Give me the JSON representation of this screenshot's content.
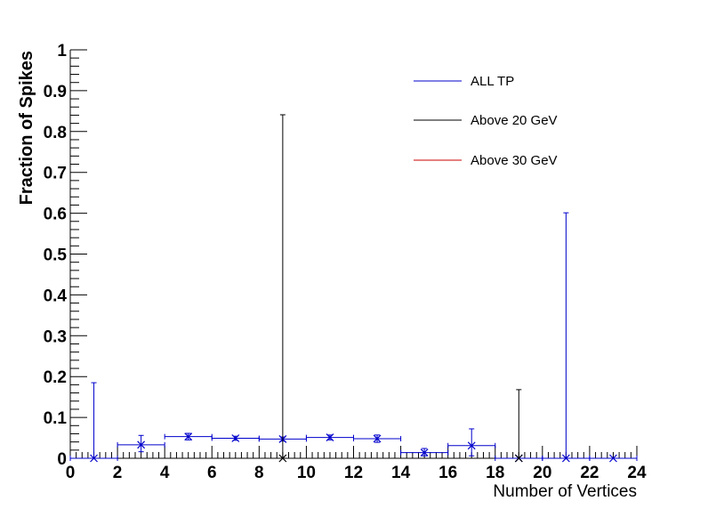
{
  "chart_data": {
    "type": "scatter",
    "xlabel": "Number of Vertices",
    "ylabel": "Fraction of Spikes",
    "xlim": [
      0,
      24
    ],
    "ylim": [
      0,
      1
    ],
    "x_ticks": [
      "0",
      "2",
      "4",
      "6",
      "8",
      "10",
      "12",
      "14",
      "16",
      "18",
      "20",
      "22",
      "24"
    ],
    "y_ticks": [
      "0",
      "0.1",
      "0.2",
      "0.3",
      "0.4",
      "0.5",
      "0.6",
      "0.7",
      "0.8",
      "0.9",
      "1"
    ],
    "grid": false,
    "legend_position": "top-right",
    "series": [
      {
        "name": "ALL TP",
        "color": "#0000cc",
        "points": [
          {
            "x": 1,
            "xerr": 1,
            "y": 0,
            "yerr_up": 0.185,
            "yerr_down": 0
          },
          {
            "x": 3,
            "xerr": 1,
            "y": 0.033,
            "yerr_up": 0.023,
            "yerr_down": 0.017
          },
          {
            "x": 5,
            "xerr": 1,
            "y": 0.053,
            "yerr_up": 0.008,
            "yerr_down": 0.008
          },
          {
            "x": 7,
            "xerr": 1,
            "y": 0.049,
            "yerr_up": 0.005,
            "yerr_down": 0.005
          },
          {
            "x": 9,
            "xerr": 1,
            "y": 0.047,
            "yerr_up": 0.005,
            "yerr_down": 0.005
          },
          {
            "x": 11,
            "xerr": 1,
            "y": 0.051,
            "yerr_up": 0.006,
            "yerr_down": 0.006
          },
          {
            "x": 13,
            "xerr": 1,
            "y": 0.048,
            "yerr_up": 0.009,
            "yerr_down": 0.009
          },
          {
            "x": 15,
            "xerr": 1,
            "y": 0.014,
            "yerr_up": 0.01,
            "yerr_down": 0.008
          },
          {
            "x": 17,
            "xerr": 1,
            "y": 0.031,
            "yerr_up": 0.041,
            "yerr_down": 0.025
          },
          {
            "x": 19,
            "xerr": 1,
            "y": 0,
            "yerr_up": 0,
            "yerr_down": 0
          },
          {
            "x": 21,
            "xerr": 1,
            "y": 0,
            "yerr_up": 0.601,
            "yerr_down": 0
          },
          {
            "x": 23,
            "xerr": 1,
            "y": 0,
            "yerr_up": 0,
            "yerr_down": 0
          }
        ]
      },
      {
        "name": "Above 20 GeV",
        "color": "#000000",
        "points": [
          {
            "x": 9,
            "xerr": 0,
            "y": 0,
            "yerr_up": 0.841,
            "yerr_down": 0
          },
          {
            "x": 19,
            "xerr": 0,
            "y": 0,
            "yerr_up": 0.168,
            "yerr_down": 0
          }
        ]
      },
      {
        "name": "Above 30 GeV",
        "color": "#cc0000",
        "points": []
      }
    ]
  }
}
